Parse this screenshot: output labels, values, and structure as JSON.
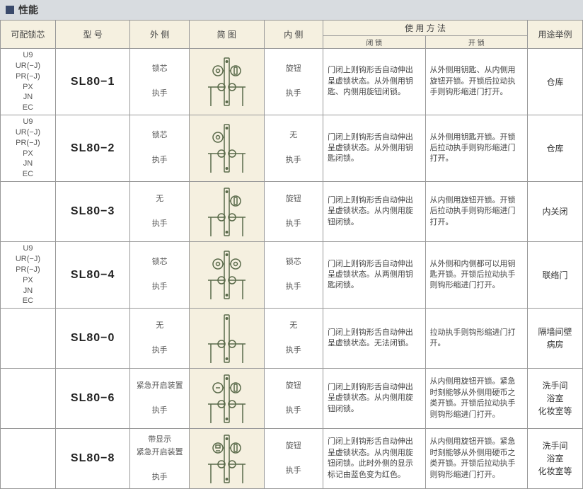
{
  "title": "性能",
  "headers": {
    "cylinder": "可配锁芯",
    "model": "型  号",
    "outside": "外  侧",
    "diagram": "简  图",
    "inside": "内  侧",
    "usage": "使  用  方  法",
    "usage_lock": "闭  锁",
    "usage_open": "开  锁",
    "example": "用途举例"
  },
  "diagram_colors": {
    "stroke": "#5a6a4a",
    "bg": "#f5f0e0"
  },
  "rows": [
    {
      "cylinder": "U9\nUR(−J)\nPR(−J)\nPX\nJN\nEC",
      "model": "SL80−1",
      "outside_top": "锁芯",
      "outside_bot": "执手",
      "inside_top": "旋钮",
      "inside_bot": "执手",
      "lock": "门闭上则钩形舌自动伸出呈虚锁状态。从外侧用钥匙、内侧用旋钮闭锁。",
      "open": "从外侧用钥匙、从内侧用旋钮开锁。开锁后拉动执手则钩形缩进门打开。",
      "example": "仓库",
      "diagram": "cyl_knob"
    },
    {
      "cylinder": "U9\nUR(−J)\nPR(−J)\nPX\nJN\nEC",
      "model": "SL80−2",
      "outside_top": "锁芯",
      "outside_bot": "执手",
      "inside_top": "无",
      "inside_bot": "执手",
      "lock": "门闭上则钩形舌自动伸出呈虚锁状态。从外侧用钥匙闭锁。",
      "open": "从外侧用钥匙开锁。开锁后拉动执手则钩形缩进门打开。",
      "example": "仓库",
      "diagram": "cyl_none"
    },
    {
      "cylinder": "",
      "model": "SL80−3",
      "outside_top": "无",
      "outside_bot": "执手",
      "inside_top": "旋钮",
      "inside_bot": "执手",
      "lock": "门闭上则钩形舌自动伸出呈虚锁状态。从内侧用旋钮闭锁。",
      "open": "从内侧用旋钮开锁。开锁后拉动执手则钩形缩进门打开。",
      "example": "内关闭",
      "diagram": "none_knob"
    },
    {
      "cylinder": "U9\nUR(−J)\nPR(−J)\nPX\nJN\nEC",
      "model": "SL80−4",
      "outside_top": "锁芯",
      "outside_bot": "执手",
      "inside_top": "锁芯",
      "inside_bot": "执手",
      "lock": "门闭上则钩形舌自动伸出呈虚锁状态。从两侧用钥匙闭锁。",
      "open": "从外侧和内侧都可以用钥匙开锁。开锁后拉动执手则钩形缩进门打开。",
      "example": "联络门",
      "diagram": "cyl_cyl"
    },
    {
      "cylinder": "",
      "model": "SL80−0",
      "outside_top": "无",
      "outside_bot": "执手",
      "inside_top": "无",
      "inside_bot": "执手",
      "lock": "门闭上则钩形舌自动伸出呈虚锁状态。无法闭锁。",
      "open": "拉动执手则钩形缩进门打开。",
      "example": "隔墙间壁\n病房",
      "diagram": "none_none"
    },
    {
      "cylinder": "",
      "model": "SL80−6",
      "outside_top": "紧急开启装置",
      "outside_bot": "执手",
      "inside_top": "旋钮",
      "inside_bot": "执手",
      "lock": "门闭上则钩形舌自动伸出呈虚锁状态。从内侧用旋钮闭锁。",
      "open": "从内侧用旋钮开锁。紧急时刻能够从外侧用硬币之类开锁。开锁后拉动执手则钩形缩进门打开。",
      "example": "洗手间\n浴室\n化妆室等",
      "diagram": "emerg_knob"
    },
    {
      "cylinder": "",
      "model": "SL80−8",
      "outside_top": "带显示\n紧急开启装置",
      "outside_bot": "执手",
      "inside_top": "旋钮",
      "inside_bot": "执手",
      "lock": "门闭上则钩形舌自动伸出呈虚锁状态。从内侧用旋钮闭锁。此时外侧的显示标记由蓝色变为红色。",
      "open": "从内侧用旋钮开锁。紧急时刻能够从外侧用硬币之类开锁。开锁后拉动执手则钩形缩进门打开。",
      "example": "洗手间\n浴室\n化妆室等",
      "diagram": "disp_knob"
    }
  ]
}
